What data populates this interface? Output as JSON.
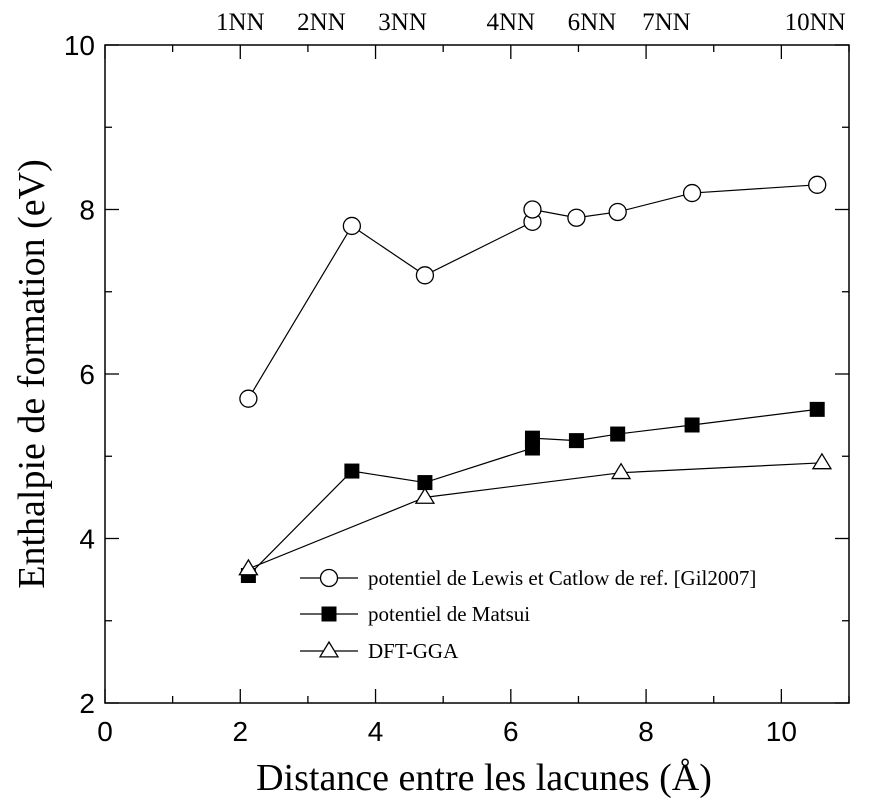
{
  "chart_data": {
    "type": "line",
    "xlabel": "Distance entre les lacunes (Å)",
    "ylabel": "Enthalpie de formation (eV)",
    "xlim": [
      0,
      11
    ],
    "ylim": [
      2,
      10
    ],
    "x_ticks": [
      "0",
      "2",
      "4",
      "6",
      "8",
      "10"
    ],
    "y_ticks": [
      "2",
      "4",
      "6",
      "8",
      "10"
    ],
    "top_axis": {
      "labels": [
        "1NN",
        "2NN",
        "3NN",
        "4NN",
        "6NN",
        "7NN",
        "10NN"
      ],
      "positions": [
        2.0,
        3.2,
        4.4,
        6.0,
        7.2,
        8.3,
        10.5
      ]
    },
    "grid": false,
    "legend_position": "bottom-right",
    "series": [
      {
        "name": "potentiel de Lewis et Catlow de ref. [Gil2007]",
        "marker": "open-circle",
        "x": [
          2.12,
          3.65,
          4.73,
          6.32,
          6.32,
          6.97,
          7.58,
          8.68,
          10.53
        ],
        "y": [
          5.7,
          7.8,
          7.2,
          7.85,
          8.0,
          7.9,
          7.97,
          8.2,
          8.3
        ]
      },
      {
        "name": "potentiel de Matsui",
        "marker": "filled-square",
        "x": [
          2.12,
          3.65,
          4.73,
          6.32,
          6.32,
          6.97,
          7.58,
          8.68,
          10.53
        ],
        "y": [
          3.55,
          4.82,
          4.68,
          5.1,
          5.22,
          5.19,
          5.27,
          5.38,
          5.57
        ]
      },
      {
        "name": "DFT-GGA",
        "marker": "open-triangle",
        "x": [
          2.12,
          4.73,
          7.63,
          10.6
        ],
        "y": [
          3.63,
          4.5,
          4.8,
          4.92
        ]
      }
    ]
  }
}
